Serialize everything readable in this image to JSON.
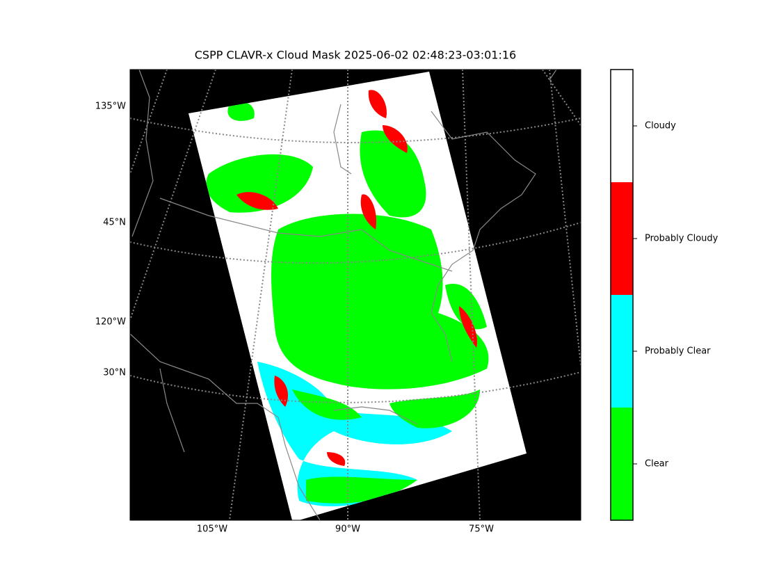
{
  "title": "CSPP CLAVR-x Cloud Mask 2025-06-02 02:48:23-03:01:16",
  "map": {
    "left_labels": [
      "135°W",
      "45°N",
      "120°W",
      "30°N"
    ],
    "bottom_labels": [
      "105°W",
      "90°W",
      "75°W"
    ]
  },
  "colorbar": {
    "categories": [
      {
        "label": "Cloudy",
        "color": "#ffffff"
      },
      {
        "label": "Probably Cloudy",
        "color": "#ff0000"
      },
      {
        "label": "Probably Clear",
        "color": "#00ffff"
      },
      {
        "label": "Clear",
        "color": "#00ff00"
      }
    ]
  }
}
